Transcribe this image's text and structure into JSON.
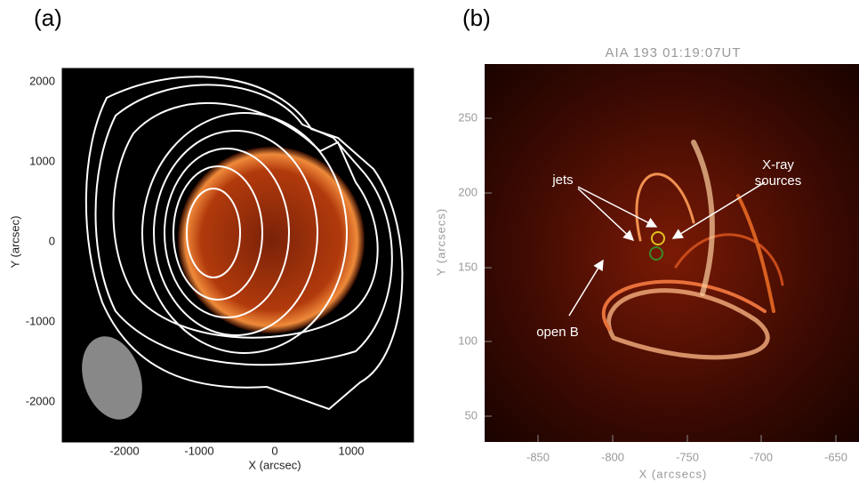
{
  "panels": [
    {
      "label": "(a)",
      "x_label": "X (arcsec)",
      "y_label": "Y (arcsec)",
      "x_ticks": [
        "-2000",
        "-1000",
        "0",
        "1000"
      ],
      "y_ticks": [
        "2000",
        "1000",
        "0",
        "-1000",
        "-2000"
      ]
    },
    {
      "label": "(b)",
      "title": "AIA 193 01:19:07UT",
      "x_label": "X (arcsecs)",
      "y_label": "Y (arcsecs)",
      "x_ticks": [
        "-850",
        "-800",
        "-750",
        "-700",
        "-650"
      ],
      "y_ticks": [
        "250",
        "200",
        "150",
        "100",
        "50"
      ],
      "annotations": {
        "jets": "jets",
        "xray": [
          "X-ray",
          "sources"
        ],
        "open_b": "open B"
      }
    }
  ]
}
